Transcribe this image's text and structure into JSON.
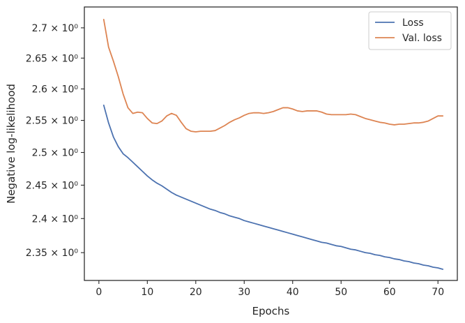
{
  "chart_data": {
    "type": "line",
    "xlabel": "Epochs",
    "ylabel": "Negative log-likelihood",
    "y_scale": "log",
    "xlim": [
      -3,
      74
    ],
    "ylim": [
      2.31,
      2.735
    ],
    "x_ticks": [
      0,
      10,
      20,
      30,
      40,
      50,
      60,
      70
    ],
    "x_tick_labels": [
      "0",
      "10",
      "20",
      "30",
      "40",
      "50",
      "60",
      "70"
    ],
    "y_ticks": [
      2.35,
      2.4,
      2.45,
      2.5,
      2.55,
      2.6,
      2.65,
      2.7
    ],
    "y_tick_labels": [
      "2.35 × 10⁰",
      "2.4 × 10⁰",
      "2.45 × 10⁰",
      "2.5 × 10⁰",
      "2.55 × 10⁰",
      "2.6 × 10⁰",
      "2.65 × 10⁰",
      "2.7 × 10⁰"
    ],
    "grid": false,
    "legend_position": "top-right",
    "series": [
      {
        "name": "Loss",
        "color": "#4c72b0",
        "x": [
          1,
          2,
          3,
          4,
          5,
          6,
          7,
          8,
          9,
          10,
          11,
          12,
          13,
          14,
          15,
          16,
          17,
          18,
          19,
          20,
          21,
          22,
          23,
          24,
          25,
          26,
          27,
          28,
          29,
          30,
          31,
          32,
          33,
          34,
          35,
          36,
          37,
          38,
          39,
          40,
          41,
          42,
          43,
          44,
          45,
          46,
          47,
          48,
          49,
          50,
          51,
          52,
          53,
          54,
          55,
          56,
          57,
          58,
          59,
          60,
          61,
          62,
          63,
          64,
          65,
          66,
          67,
          68,
          69,
          70,
          71
        ],
        "values": [
          2.574,
          2.546,
          2.524,
          2.509,
          2.498,
          2.492,
          2.485,
          2.478,
          2.471,
          2.464,
          2.458,
          2.453,
          2.449,
          2.444,
          2.439,
          2.435,
          2.432,
          2.429,
          2.426,
          2.423,
          2.42,
          2.417,
          2.414,
          2.412,
          2.409,
          2.407,
          2.404,
          2.402,
          2.4,
          2.397,
          2.395,
          2.393,
          2.391,
          2.389,
          2.387,
          2.385,
          2.383,
          2.381,
          2.379,
          2.377,
          2.375,
          2.373,
          2.371,
          2.369,
          2.367,
          2.365,
          2.364,
          2.362,
          2.36,
          2.359,
          2.357,
          2.355,
          2.354,
          2.352,
          2.35,
          2.349,
          2.347,
          2.346,
          2.344,
          2.343,
          2.341,
          2.34,
          2.338,
          2.337,
          2.335,
          2.334,
          2.332,
          2.331,
          2.329,
          2.328,
          2.326
        ]
      },
      {
        "name": "Val. loss",
        "color": "#dd8452",
        "x": [
          1,
          2,
          3,
          4,
          5,
          6,
          7,
          8,
          9,
          10,
          11,
          12,
          13,
          14,
          15,
          16,
          17,
          18,
          19,
          20,
          21,
          22,
          23,
          24,
          25,
          26,
          27,
          28,
          29,
          30,
          31,
          32,
          33,
          34,
          35,
          36,
          37,
          38,
          39,
          40,
          41,
          42,
          43,
          44,
          45,
          46,
          47,
          48,
          49,
          50,
          51,
          52,
          53,
          54,
          55,
          56,
          57,
          58,
          59,
          60,
          61,
          62,
          63,
          64,
          65,
          66,
          67,
          68,
          69,
          70,
          71
        ],
        "values": [
          2.714,
          2.668,
          2.645,
          2.62,
          2.592,
          2.57,
          2.561,
          2.563,
          2.562,
          2.553,
          2.546,
          2.545,
          2.549,
          2.557,
          2.561,
          2.558,
          2.547,
          2.537,
          2.533,
          2.532,
          2.533,
          2.533,
          2.533,
          2.534,
          2.538,
          2.542,
          2.547,
          2.551,
          2.554,
          2.558,
          2.561,
          2.562,
          2.562,
          2.561,
          2.562,
          2.564,
          2.567,
          2.57,
          2.57,
          2.568,
          2.565,
          2.564,
          2.565,
          2.565,
          2.565,
          2.563,
          2.56,
          2.559,
          2.559,
          2.559,
          2.559,
          2.56,
          2.559,
          2.556,
          2.553,
          2.551,
          2.549,
          2.547,
          2.546,
          2.544,
          2.543,
          2.544,
          2.544,
          2.545,
          2.546,
          2.546,
          2.547,
          2.549,
          2.553,
          2.557,
          2.557
        ]
      }
    ]
  }
}
